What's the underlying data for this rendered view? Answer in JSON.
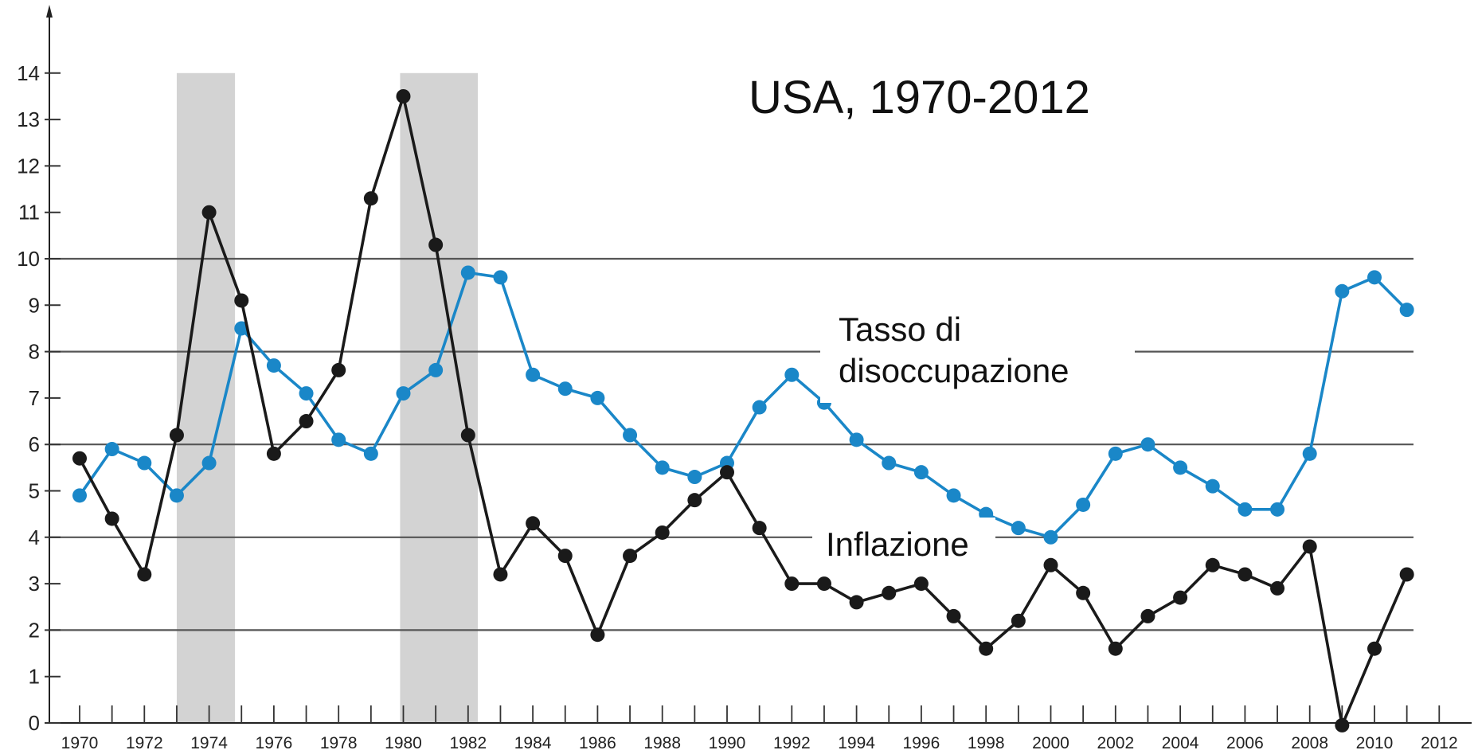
{
  "chart_data": {
    "type": "line",
    "title": "USA, 1970-2012",
    "xlabel": "",
    "ylabel": "",
    "xlim": [
      1969.4,
      2012.4
    ],
    "ylim": [
      0,
      15
    ],
    "x_ticks": [
      1970,
      1972,
      1974,
      1976,
      1978,
      1980,
      1982,
      1984,
      1986,
      1988,
      1990,
      1992,
      1994,
      1996,
      1998,
      2000,
      2002,
      2004,
      2006,
      2008,
      2010,
      2012
    ],
    "y_ticks": [
      0,
      1,
      2,
      3,
      4,
      5,
      6,
      7,
      8,
      9,
      10,
      11,
      12,
      13,
      14
    ],
    "gridlines_y": [
      2,
      4,
      6,
      8,
      10
    ],
    "shaded_periods": [
      [
        1973,
        1974.8
      ],
      [
        1979.9,
        1982.3
      ]
    ],
    "series": [
      {
        "name": "Tasso di disoccupazione",
        "color": "#1a87c8",
        "x": [
          1970,
          1971,
          1972,
          1973,
          1974,
          1975,
          1976,
          1977,
          1978,
          1979,
          1980,
          1981,
          1982,
          1983,
          1984,
          1985,
          1986,
          1987,
          1988,
          1989,
          1990,
          1991,
          1992,
          1993,
          1994,
          1995,
          1996,
          1997,
          1998,
          1999,
          2000,
          2001,
          2002,
          2003,
          2004,
          2005,
          2006,
          2007,
          2008,
          2009,
          2010,
          2011
        ],
        "values": [
          4.9,
          5.9,
          5.6,
          4.9,
          5.6,
          8.5,
          7.7,
          7.1,
          6.1,
          5.8,
          7.1,
          7.6,
          9.7,
          9.6,
          7.5,
          7.2,
          7.0,
          6.2,
          5.5,
          5.3,
          5.6,
          6.8,
          7.5,
          6.9,
          6.1,
          5.6,
          5.4,
          4.9,
          4.5,
          4.2,
          4.0,
          4.7,
          5.8,
          6.0,
          5.5,
          5.1,
          4.6,
          4.6,
          5.8,
          9.3,
          9.6,
          8.9
        ]
      },
      {
        "name": "Inflazione",
        "color": "#1a1a1a",
        "x": [
          1970,
          1971,
          1972,
          1973,
          1974,
          1975,
          1976,
          1977,
          1978,
          1979,
          1980,
          1981,
          1982,
          1983,
          1984,
          1985,
          1986,
          1987,
          1988,
          1989,
          1990,
          1991,
          1992,
          1993,
          1994,
          1995,
          1996,
          1997,
          1998,
          1999,
          2000,
          2001,
          2002,
          2003,
          2004,
          2005,
          2006,
          2007,
          2008,
          2009,
          2010,
          2011
        ],
        "values": [
          5.7,
          4.4,
          3.2,
          6.2,
          11.0,
          9.1,
          5.8,
          6.5,
          7.6,
          11.3,
          13.5,
          10.3,
          6.2,
          3.2,
          4.3,
          3.6,
          1.9,
          3.6,
          4.1,
          4.8,
          5.4,
          4.2,
          3.0,
          3.0,
          2.6,
          2.8,
          3.0,
          2.3,
          1.6,
          2.2,
          3.4,
          2.8,
          1.6,
          2.3,
          2.7,
          3.4,
          3.2,
          2.9,
          3.8,
          -0.4,
          1.6,
          3.2
        ]
      }
    ],
    "annotations": [
      {
        "text_lines": [
          "Tasso di",
          "disoccupazione"
        ],
        "target": "Tasso di disoccupazione"
      },
      {
        "text_lines": [
          "Inflazione"
        ],
        "target": "Inflazione"
      }
    ],
    "grid": true,
    "legend": "none"
  }
}
